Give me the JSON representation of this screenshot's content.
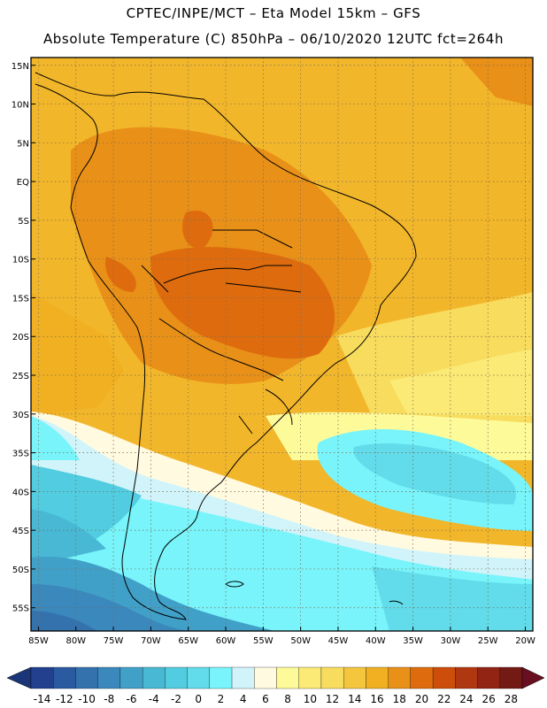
{
  "header": {
    "line1": "CPTEC/INPE/MCT –  Eta Model 15km – GFS",
    "line2": "Absolute Temperature (C) 850hPa – 06/10/2020 12UTC fct=264h"
  },
  "map": {
    "lat_range": [
      -58,
      16
    ],
    "lon_range": [
      -86,
      -19
    ],
    "lat_ticks": [
      "15N",
      "10N",
      "5N",
      "EQ",
      "5S",
      "10S",
      "15S",
      "20S",
      "25S",
      "30S",
      "35S",
      "40S",
      "45S",
      "50S",
      "55S"
    ],
    "lat_values": [
      15,
      10,
      5,
      0,
      -5,
      -10,
      -15,
      -20,
      -25,
      -30,
      -35,
      -40,
      -45,
      -50,
      -55
    ],
    "lon_ticks": [
      "85W",
      "80W",
      "75W",
      "70W",
      "65W",
      "60W",
      "55W",
      "50W",
      "45W",
      "40W",
      "35W",
      "30W",
      "25W",
      "20W"
    ],
    "lon_values": [
      -85,
      -80,
      -75,
      -70,
      -65,
      -60,
      -55,
      -50,
      -45,
      -40,
      -35,
      -30,
      -25,
      -20
    ],
    "grid": "dotted",
    "region": "South America"
  },
  "colorbar": {
    "labels": [
      "-14",
      "-12",
      "-10",
      "-8",
      "-6",
      "-4",
      "-2",
      "0",
      "2",
      "4",
      "6",
      "8",
      "10",
      "12",
      "14",
      "16",
      "18",
      "20",
      "22",
      "24",
      "26",
      "28"
    ],
    "colors": [
      "#22408e",
      "#2a5aa0",
      "#3472ae",
      "#3b88bc",
      "#41a0c8",
      "#48b8d4",
      "#52cce0",
      "#62dcea",
      "#78f4fa",
      "#d0f4fa",
      "#fffae0",
      "#fdfa9a",
      "#fbea76",
      "#f8dc5e",
      "#f4c63e",
      "#f0b022",
      "#e89018",
      "#de6c0e",
      "#cc4e0a",
      "#b03810",
      "#922414",
      "#741a14"
    ],
    "under_color": "#1a3678",
    "over_color": "#6a0e22"
  }
}
